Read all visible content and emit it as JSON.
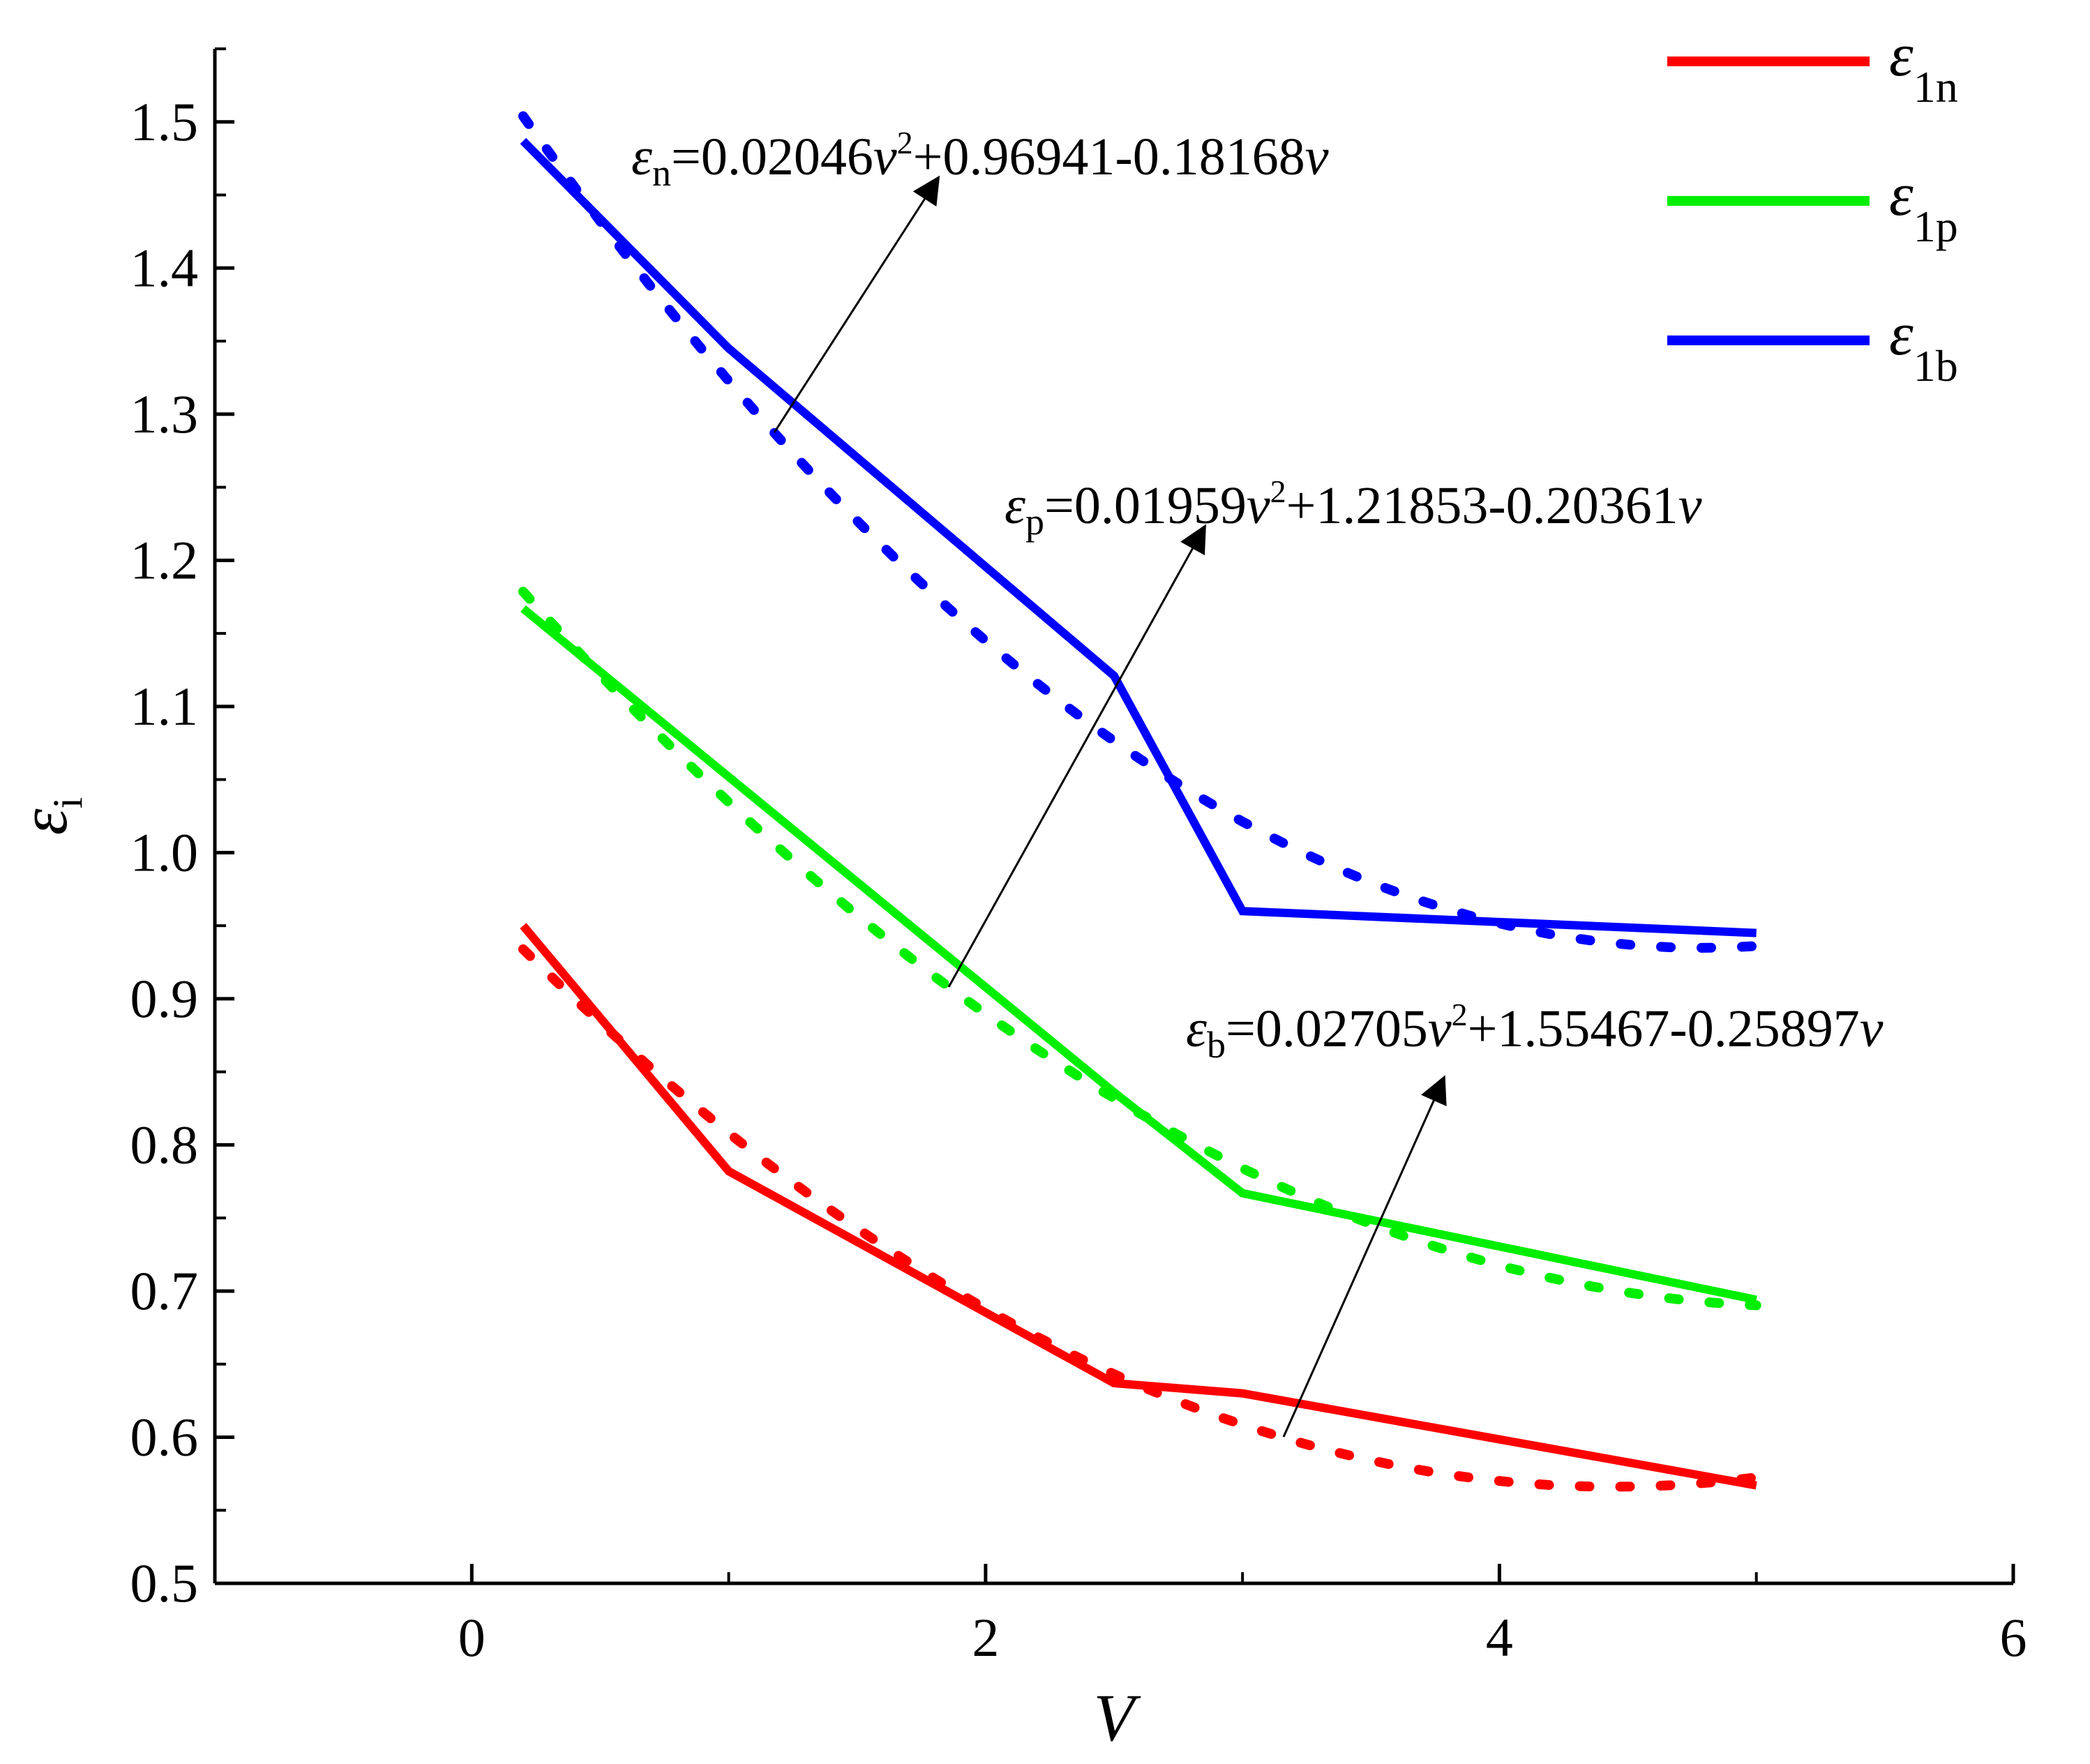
{
  "chart_data": {
    "type": "line",
    "xlabel": "V",
    "ylabel": {
      "main": "ε",
      "sub": "i"
    },
    "xlim": [
      -1,
      6
    ],
    "ylim": [
      0.5,
      1.55
    ],
    "xticks": [
      0,
      2,
      4,
      6
    ],
    "xtick_labels": [
      "0",
      "2",
      "4",
      "6"
    ],
    "yticks": [
      0.5,
      0.6,
      0.7,
      0.8,
      0.9,
      1.0,
      1.1,
      1.2,
      1.3,
      1.4,
      1.5
    ],
    "ytick_labels": [
      "0.5",
      "0.6",
      "0.7",
      "0.8",
      "0.9",
      "1.0",
      "1.1",
      "1.2",
      "1.3",
      "1.4",
      "1.5"
    ],
    "legend_position": "top-right",
    "grid": false,
    "series": [
      {
        "name": "ε1n",
        "legend_main": "ε",
        "legend_sub": "1n",
        "color": "#ff0000",
        "x": [
          0.2,
          1.0,
          2.5,
          3.0,
          5.0
        ],
        "y": [
          0.95,
          0.782,
          0.637,
          0.63,
          0.567
        ]
      },
      {
        "name": "ε1p",
        "legend_main": "ε",
        "legend_sub": "1p",
        "color": "#00ee00",
        "x": [
          0.2,
          2.5,
          3.0,
          5.0
        ],
        "y": [
          1.167,
          0.836,
          0.767,
          0.694
        ]
      },
      {
        "name": "ε1b",
        "legend_main": "ε",
        "legend_sub": "1b",
        "color": "#0000ff",
        "x": [
          0.2,
          1.0,
          2.5,
          3.0,
          5.0
        ],
        "y": [
          1.487,
          1.345,
          1.121,
          0.96,
          0.945
        ]
      }
    ],
    "fits": [
      {
        "label": "εn=0.02046v2+0.96941-0.18168v",
        "color": "#ff0000",
        "a": 0.02046,
        "b": -0.18168,
        "c": 0.96941,
        "x_range": [
          0.2,
          5.0
        ],
        "parts": {
          "eps": "ε",
          "sub": "n",
          "coef_a": "=0.02046",
          "var": "v",
          "pow": "2",
          "rest": "+0.96941-0.18168",
          "var2": "v"
        }
      },
      {
        "label": "εp=0.01959v2+1.21853-0.20361v",
        "color": "#00ee00",
        "a": 0.01959,
        "b": -0.20361,
        "c": 1.21853,
        "x_range": [
          0.2,
          5.0
        ],
        "parts": {
          "eps": "ε",
          "sub": "p",
          "coef_a": "=0.01959",
          "var": "v",
          "pow": "2",
          "rest": "+1.21853-0.20361",
          "var2": "v"
        }
      },
      {
        "label": "εb=0.02705v2+1.55467-0.25897v",
        "color": "#0000ff",
        "a": 0.02705,
        "b": -0.25897,
        "c": 1.55467,
        "x_range": [
          0.2,
          5.0
        ],
        "parts": {
          "eps": "ε",
          "sub": "b",
          "coef_a": "=0.02705",
          "var": "v",
          "pow": "2",
          "rest": "+1.55467-0.25897",
          "var2": "v"
        }
      }
    ]
  }
}
